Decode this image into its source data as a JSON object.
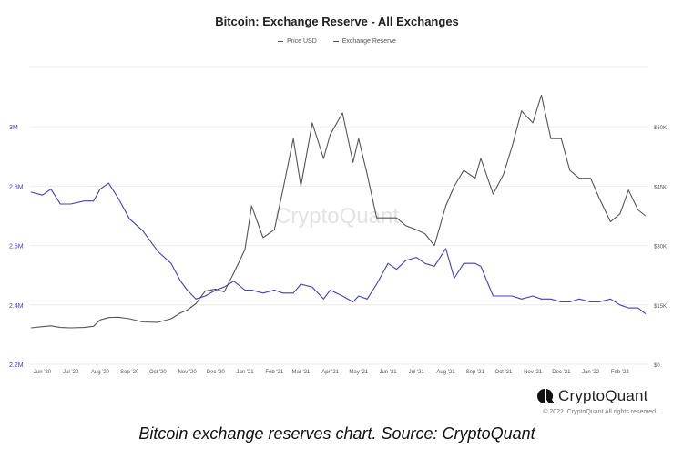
{
  "chart_data": {
    "type": "line",
    "title": "Bitcoin: Exchange Reserve - All Exchanges",
    "legend_placement": "top-center",
    "grid": true,
    "watermark": "CryptoQuant",
    "x_ticks": [
      "Jun '20",
      "Jul '20",
      "Aug '20",
      "Sep '20",
      "Oct '20",
      "Nov '20",
      "Dec '20",
      "Jan '21",
      "Feb '21",
      "Mar '21",
      "Apr '21",
      "May '21",
      "Jun '21",
      "Jul '21",
      "Aug '21",
      "Sep '21",
      "Oct '21",
      "Nov '21",
      "Dec '21",
      "Jan '22",
      "Feb '22"
    ],
    "x": [
      "2020-05-20",
      "2020-06-01",
      "2020-06-10",
      "2020-06-20",
      "2020-07-01",
      "2020-07-15",
      "2020-07-25",
      "2020-08-01",
      "2020-08-10",
      "2020-08-20",
      "2020-09-01",
      "2020-09-15",
      "2020-10-01",
      "2020-10-15",
      "2020-10-25",
      "2020-11-01",
      "2020-11-10",
      "2020-11-20",
      "2020-12-01",
      "2020-12-10",
      "2020-12-20",
      "2021-01-01",
      "2021-01-08",
      "2021-01-20",
      "2021-02-01",
      "2021-02-10",
      "2021-02-21",
      "2021-03-01",
      "2021-03-13",
      "2021-03-25",
      "2021-04-01",
      "2021-04-14",
      "2021-04-25",
      "2021-05-01",
      "2021-05-10",
      "2021-05-20",
      "2021-06-01",
      "2021-06-10",
      "2021-06-20",
      "2021-07-01",
      "2021-07-10",
      "2021-07-20",
      "2021-08-01",
      "2021-08-10",
      "2021-08-20",
      "2021-09-01",
      "2021-09-07",
      "2021-09-20",
      "2021-10-01",
      "2021-10-10",
      "2021-10-20",
      "2021-11-01",
      "2021-11-10",
      "2021-11-20",
      "2021-12-01",
      "2021-12-10",
      "2021-12-20",
      "2022-01-01",
      "2022-01-10",
      "2022-01-22",
      "2022-02-01",
      "2022-02-10",
      "2022-02-20",
      "2022-02-28"
    ],
    "series": [
      {
        "name": "Price USD",
        "color": "#555555",
        "axis": "right",
        "values": [
          9200,
          9500,
          9700,
          9300,
          9200,
          9300,
          9600,
          11200,
          11800,
          11900,
          11500,
          10700,
          10600,
          11500,
          13000,
          13700,
          15300,
          18500,
          19000,
          18300,
          23000,
          29000,
          40000,
          32000,
          34000,
          44000,
          57000,
          45000,
          61000,
          52000,
          58000,
          63500,
          51000,
          57000,
          48000,
          37000,
          37000,
          37000,
          35000,
          34000,
          33000,
          30000,
          40000,
          45000,
          49000,
          47000,
          52000,
          43000,
          48000,
          55000,
          64000,
          61000,
          68000,
          57000,
          57000,
          49000,
          47000,
          47000,
          42000,
          36000,
          38000,
          44000,
          39000,
          37500
        ]
      },
      {
        "name": "Exchange Reserve",
        "color": "#3f3fc9",
        "axis": "left",
        "values": [
          2780000,
          2770000,
          2790000,
          2740000,
          2740000,
          2750000,
          2750000,
          2790000,
          2810000,
          2760000,
          2690000,
          2650000,
          2580000,
          2540000,
          2480000,
          2450000,
          2420000,
          2430000,
          2450000,
          2460000,
          2480000,
          2450000,
          2450000,
          2440000,
          2450000,
          2440000,
          2440000,
          2470000,
          2460000,
          2420000,
          2450000,
          2430000,
          2410000,
          2430000,
          2420000,
          2470000,
          2540000,
          2520000,
          2550000,
          2560000,
          2540000,
          2530000,
          2590000,
          2490000,
          2540000,
          2540000,
          2530000,
          2430000,
          2430000,
          2430000,
          2420000,
          2430000,
          2420000,
          2420000,
          2410000,
          2410000,
          2420000,
          2410000,
          2410000,
          2420000,
          2400000,
          2390000,
          2390000,
          2370000
        ]
      }
    ],
    "y_left": {
      "min": 2200000,
      "max": 3200000,
      "ticks": [
        2200000,
        2400000,
        2600000,
        2800000,
        3000000
      ],
      "tick_labels": [
        "2.2M",
        "2.4M",
        "2.6M",
        "2.8M",
        "3M"
      ],
      "color": "#3f3fc9"
    },
    "y_right": {
      "min": 0,
      "max": 75000,
      "ticks": [
        0,
        15000,
        30000,
        45000,
        60000
      ],
      "tick_labels": [
        "$0",
        "$15K",
        "$30K",
        "$45K",
        "$60K"
      ],
      "color": "#555555"
    }
  },
  "branding": {
    "logo_text": "CryptoQuant",
    "copyright": "© 2022. CryptoQuant All rights reserved."
  },
  "caption": "Bitcoin exchange reserves chart. Source: CryptoQuant"
}
